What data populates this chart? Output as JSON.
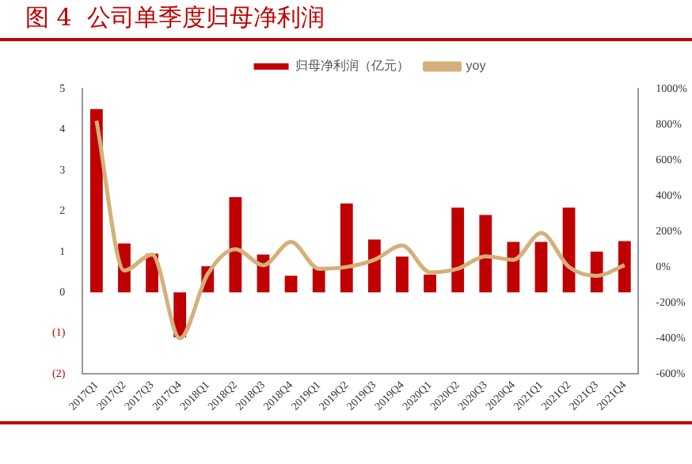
{
  "chart_data": {
    "type": "bar",
    "title": "图 4  公司单季度归母净利润",
    "categories": [
      "2017Q1",
      "2017Q2",
      "2017Q3",
      "2017Q4",
      "2018Q1",
      "2018Q2",
      "2018Q3",
      "2018Q4",
      "2019Q1",
      "2019Q2",
      "2019Q3",
      "2019Q4",
      "2020Q1",
      "2020Q2",
      "2020Q3",
      "2020Q4",
      "2021Q1",
      "2021Q2",
      "2021Q3",
      "2021Q4"
    ],
    "series": [
      {
        "name": "归母净利润（亿元）",
        "color": "#c00000",
        "values": [
          4.5,
          1.2,
          0.95,
          -1.1,
          0.64,
          2.34,
          0.93,
          0.41,
          0.6,
          2.18,
          1.3,
          0.88,
          0.44,
          2.08,
          1.9,
          1.24,
          1.24,
          2.08,
          1.0,
          1.26
        ]
      },
      {
        "name": "yoy",
        "type": "line",
        "axis": "y2",
        "color": "#d4b07a",
        "values": [
          820,
          -20,
          70,
          -400,
          -40,
          100,
          10,
          140,
          -10,
          0,
          40,
          120,
          -30,
          -10,
          60,
          40,
          190,
          0,
          -50,
          10
        ]
      }
    ],
    "ylim": [
      -2,
      5
    ],
    "yticks": [
      {
        "value": -2,
        "label": "(2)"
      },
      {
        "value": -1,
        "label": "(1)"
      },
      0,
      1,
      2,
      3,
      4,
      5
    ],
    "y2lim": [
      -600,
      1000
    ],
    "y2ticks": [
      {
        "value": -600,
        "label": "-600%"
      },
      {
        "value": -400,
        "label": "-400%"
      },
      {
        "value": -200,
        "label": "-200%"
      },
      {
        "value": 0,
        "label": "0%"
      },
      {
        "value": 200,
        "label": "200%"
      },
      {
        "value": 400,
        "label": "400%"
      },
      {
        "value": 600,
        "label": "600%"
      },
      {
        "value": 800,
        "label": "800%"
      },
      {
        "value": 1000,
        "label": "1000%"
      }
    ],
    "legend": "top",
    "grid": false,
    "marker": "none",
    "line_style": "solid"
  }
}
